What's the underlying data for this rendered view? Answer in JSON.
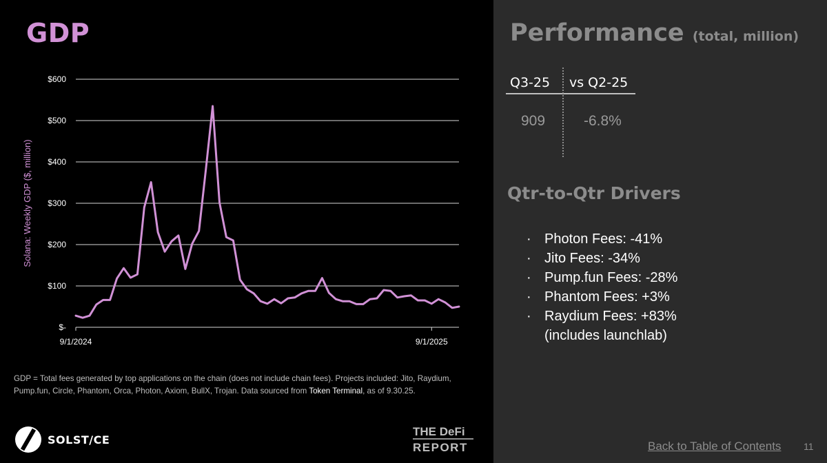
{
  "left": {
    "title": "GDP",
    "footnote": {
      "part1": "GDP = Total fees generated by top applications on the chain (does not include chain fees). Projects included: Jito, Raydium, Pump.fun, Circle, Phantom, Orca, Photon, Axiom, BullX, Trojan. Data sourced from ",
      "highlight": "Token Terminal",
      "part2": ", as of 9.30.25."
    },
    "logos": {
      "solstice_text": "SOLST/CE",
      "defi_line1": "THE DeFi",
      "defi_line2": "REPORT"
    }
  },
  "right": {
    "title": "Performance",
    "title_suffix": "(total, million)",
    "kpi": {
      "col1_header": "Q3-25",
      "col2_header": "vs Q2-25",
      "col1_value": "909",
      "col2_value": "-6.8%"
    },
    "drivers_title": "Qtr-to-Qtr Drivers",
    "bullet": "·",
    "drivers": [
      "Photon Fees: -41%",
      "Jito Fees: -34%",
      "Pump.fun Fees: -28%",
      "Phantom Fees: +3%",
      "Raydium Fees: +83%"
    ],
    "drivers_cont": "(includes launchlab)",
    "toc_link": "Back to Table of Contents",
    "page_number": "11"
  },
  "colors": {
    "accent": "#d191d6",
    "left_bg": "#000000",
    "right_bg": "#2b2b2b",
    "muted_text": "#8c8c8c"
  },
  "chart_data": {
    "type": "line",
    "title": "",
    "ylabel": "Solana: Weekly GDP ($, million)",
    "xlabel": "",
    "ylim": [
      0,
      600
    ],
    "y_ticks": [
      0,
      100,
      200,
      300,
      400,
      500,
      600
    ],
    "y_tick_labels": [
      "$-",
      "$100",
      "$200",
      "$300",
      "$400",
      "$500",
      "$600"
    ],
    "x_tick_labels": [
      "9/1/2024",
      "9/1/2025"
    ],
    "x_tick_index": [
      0,
      52
    ],
    "grid": true,
    "series": [
      {
        "name": "",
        "color": "#d191d6",
        "values": [
          28,
          23,
          28,
          55,
          66,
          66,
          118,
          143,
          120,
          128,
          290,
          351,
          230,
          183,
          208,
          222,
          141,
          202,
          233,
          380,
          535,
          302,
          218,
          210,
          115,
          92,
          82,
          63,
          57,
          68,
          58,
          70,
          72,
          82,
          88,
          88,
          119,
          83,
          68,
          63,
          63,
          56,
          56,
          68,
          70,
          90,
          88,
          72,
          75,
          77,
          65,
          65,
          57,
          68,
          60,
          47,
          50
        ]
      }
    ]
  }
}
